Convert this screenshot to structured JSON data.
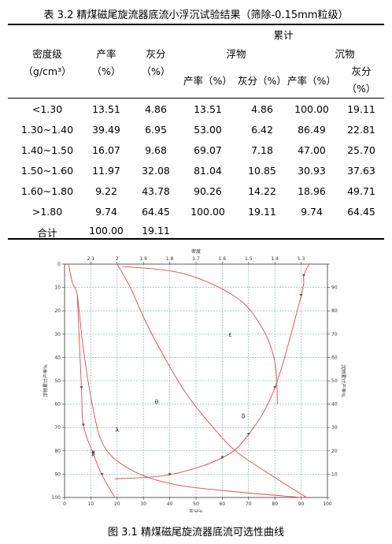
{
  "table": {
    "caption": "表 3.2 精煤磁尾旋流器底流小浮沉试验结果（筛除-0.15mm粒级）",
    "header": {
      "cumulative": "累计",
      "density_level": "密度级",
      "density_unit": "（g/cm³）",
      "yield": "产率",
      "yield_unit": "（%）",
      "ash": "灰分",
      "ash_unit": "（%）",
      "float": "浮物",
      "sink": "沉物",
      "float_yield": "产率（%）",
      "float_ash": "灰分（%）",
      "sink_yield": "产率（%）",
      "sink_ash": "灰分",
      "sink_ash_unit": "（%）"
    },
    "rows": [
      [
        "<1.30",
        "13.51",
        "4.86",
        "13.51",
        "4.86",
        "100.00",
        "19.11"
      ],
      [
        "1.30~1.40",
        "39.49",
        "6.95",
        "53.00",
        "6.42",
        "86.49",
        "22.81"
      ],
      [
        "1.40~1.50",
        "16.07",
        "9.68",
        "69.07",
        "7.18",
        "47.00",
        "25.70"
      ],
      [
        "1.50~1.60",
        "11.97",
        "32.08",
        "81.04",
        "10.85",
        "30.93",
        "37.63"
      ],
      [
        "1.60~1.80",
        "9.22",
        "43.78",
        "90.26",
        "14.22",
        "18.96",
        "49.71"
      ],
      [
        ">1.80",
        "9.74",
        "64.45",
        "100.00",
        "19.11",
        "9.74",
        "64.45"
      ],
      [
        "合计",
        "100.00",
        "19.11",
        "",
        "",
        "",
        ""
      ]
    ]
  },
  "figure_caption": "图 3.1   精煤磁尾旋流器底流可选性曲线",
  "chart_data": {
    "type": "line",
    "title": "密度",
    "xlabel": "灰分%",
    "ylabel_left": "浮物累计产率%",
    "ylabel_right": "沉物累计产率%",
    "xlim": [
      0,
      100
    ],
    "ylim": [
      0,
      100
    ],
    "x_ticks": [
      "0",
      "10",
      "20",
      "30",
      "40",
      "50",
      "60",
      "70",
      "80",
      "90",
      "100"
    ],
    "y_ticks_left": [
      "0",
      "10",
      "20",
      "30",
      "40",
      "50",
      "60",
      "70",
      "80",
      "90",
      "100"
    ],
    "y_ticks_right": [
      "100",
      "90",
      "80",
      "70",
      "60",
      "50",
      "40",
      "30",
      "20",
      "10",
      "0"
    ],
    "density_axis": {
      "labels": [
        "2.1",
        "2",
        "1.9",
        "1.8",
        "1.7",
        "1.6",
        "1.5",
        "1.4",
        "1.3"
      ],
      "positions": [
        10,
        20,
        30,
        40,
        50,
        60,
        70,
        80,
        90
      ]
    },
    "series": [
      {
        "name": "λ",
        "points": [
          [
            1.5,
            0
          ],
          [
            3,
            8
          ],
          [
            4.86,
            13.51
          ],
          [
            7,
            35
          ],
          [
            10.5,
            60
          ],
          [
            15,
            78
          ],
          [
            25,
            88
          ],
          [
            40,
            94
          ],
          [
            60,
            97
          ],
          [
            90,
            100
          ]
        ]
      },
      {
        "name": "β",
        "points": [
          [
            4.86,
            13.51
          ],
          [
            6.42,
            53
          ],
          [
            7.18,
            69.07
          ],
          [
            10.85,
            81.04
          ],
          [
            14.22,
            90.26
          ],
          [
            19.11,
            100
          ]
        ]
      },
      {
        "name": "θ",
        "points": [
          [
            20,
            0
          ],
          [
            25,
            10
          ],
          [
            31,
            25
          ],
          [
            38,
            40
          ],
          [
            46,
            55
          ],
          [
            55,
            68
          ],
          [
            65,
            80
          ],
          [
            78,
            90
          ],
          [
            92,
            100
          ]
        ]
      },
      {
        "name": "ε",
        "points": [
          [
            22,
            1
          ],
          [
            45,
            4
          ],
          [
            65,
            14
          ],
          [
            75,
            27
          ],
          [
            80,
            42
          ],
          [
            81,
            60
          ]
        ]
      },
      {
        "name": "δ",
        "points": [
          [
            19.11,
            92
          ],
          [
            40,
            90.26
          ],
          [
            60,
            83
          ],
          [
            70,
            73
          ],
          [
            80,
            53
          ],
          [
            90,
            13.51
          ],
          [
            91,
            5
          ],
          [
            93,
            0
          ]
        ]
      }
    ],
    "annotations": [
      {
        "text": "ε",
        "x": 63,
        "y": 31
      },
      {
        "text": "θ",
        "x": 35,
        "y": 60
      },
      {
        "text": "δ",
        "x": 68,
        "y": 66
      },
      {
        "text": "λ",
        "x": 20,
        "y": 72
      },
      {
        "text": "β",
        "x": 11,
        "y": 82
      }
    ],
    "colors": {
      "curves": "#e0484a",
      "grid": "#4a9a8a",
      "axis": "#333333",
      "text": "#333333"
    }
  }
}
